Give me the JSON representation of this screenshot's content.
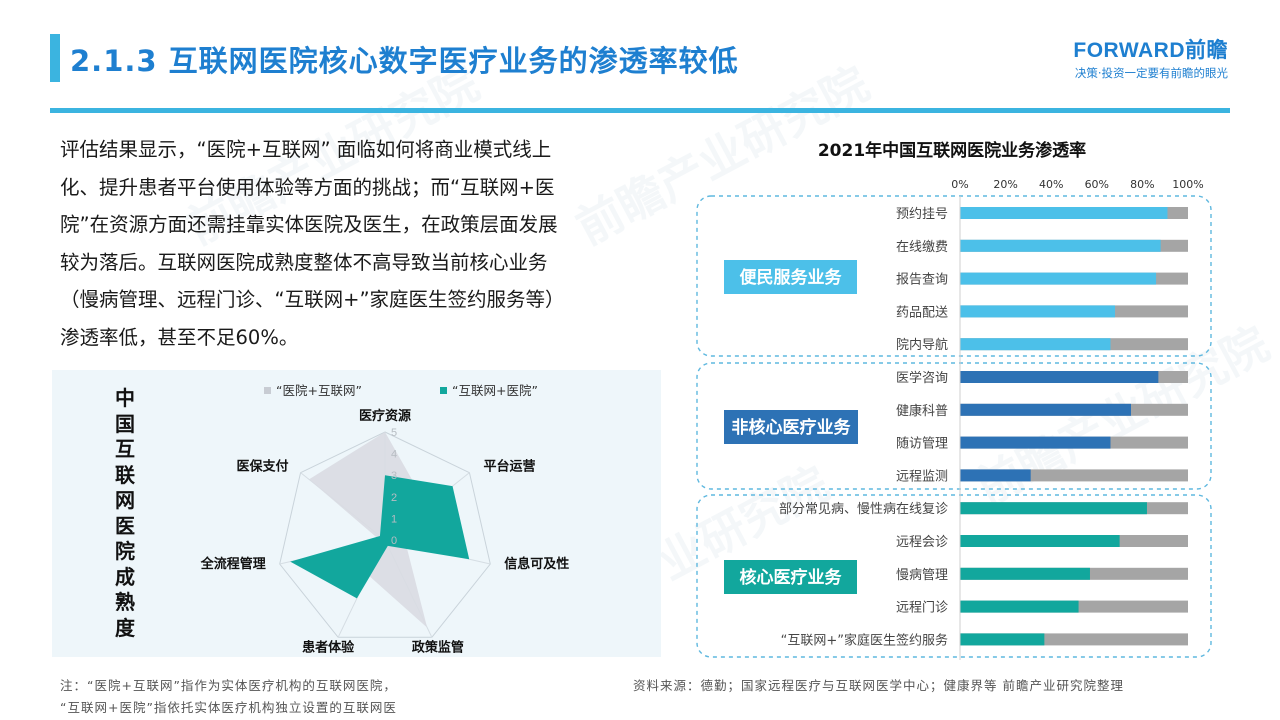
{
  "header": {
    "title": "2.1.3 互联网医院核心数字医疗业务的渗透率较低",
    "brand_logo": "FORWARD前瞻",
    "brand_slogan": "决策·投资一定要有前瞻的眼光"
  },
  "body_text": [
    "评估结果显示，“医院+互联网” 面临如何将商业模式线上",
    "化、提升患者平台使用体验等方面的挑战；而“互联网+医",
    "院”在资源方面还需挂靠实体医院及医生，在政策层面发展",
    "较为落后。互联网医院成熟度整体不高导致当前核心业务",
    "（慢病管理、远程门诊、“互联网+”家庭医生签约服务等）",
    "渗透率低，甚至不足60%。"
  ],
  "footer": {
    "note_1": "注：“医院+互联网”指作为实体医疗机构的互联网医院，",
    "note_2": "“互联网+医院”指依托实体医疗机构独立设置的互联网医",
    "source": "资料来源：德勤；国家远程医疗与互联网医学中心；健康界等 前瞻产业研究院整理"
  },
  "watermark": "前瞻产业研究院",
  "colors": {
    "title_blue": "#1e7fd0",
    "rule_cyan": "#3bb4e0",
    "bar_light_blue": "#4cc0e9",
    "bar_dark_blue": "#2d72b5",
    "bar_teal": "#12a79d",
    "bar_gray": "#a5a5a5",
    "radar_gray": "#d9dce2",
    "radar_teal": "#12a79d"
  },
  "chart_data": [
    {
      "type": "radar",
      "title": "中国互联网医院成熟度",
      "axes": [
        "医疗资源",
        "平台运营",
        "信息可及性",
        "政策监管",
        "患者体验",
        "全流程管理",
        "医保支付"
      ],
      "rlim": [
        0,
        5
      ],
      "ticks": [
        0,
        1,
        2,
        3,
        4,
        5
      ],
      "legend_position": "top",
      "series": [
        {
          "name": "“医院+互联网”",
          "color": "#d9dce2",
          "values": [
            5,
            2.5,
            1.0,
            4.5,
            1.8,
            0.2,
            4.5
          ]
        },
        {
          "name": "“互联网+医院”",
          "color": "#12a79d",
          "values": [
            3,
            4.0,
            4.0,
            0.3,
            3.0,
            4.5,
            0.3
          ]
        }
      ]
    },
    {
      "type": "bar",
      "orientation": "horizontal",
      "stacked_percent": true,
      "title": "2021年中国互联网医院业务渗透率",
      "xlim": [
        0,
        100
      ],
      "xticks": [
        "0%",
        "20%",
        "40%",
        "60%",
        "80%",
        "100%"
      ],
      "groups": [
        {
          "label": "便民服务业务",
          "color": "#4cc0e9",
          "categories": [
            "预约挂号",
            "在线缴费",
            "报告查询",
            "药品配送",
            "院内导航"
          ],
          "values": [
            91,
            88,
            86,
            68,
            66
          ]
        },
        {
          "label": "非核心医疗业务",
          "color": "#2d72b5",
          "categories": [
            "医学咨询",
            "健康科普",
            "随访管理",
            "远程监测"
          ],
          "values": [
            87,
            75,
            66,
            31
          ]
        },
        {
          "label": "核心医疗业务",
          "color": "#12a79d",
          "categories": [
            "部分常见病、慢性病在线复诊",
            "远程会诊",
            "慢病管理",
            "远程门诊",
            "“互联网+”家庭医生签约服务"
          ],
          "values": [
            82,
            70,
            57,
            52,
            37
          ]
        }
      ]
    }
  ]
}
